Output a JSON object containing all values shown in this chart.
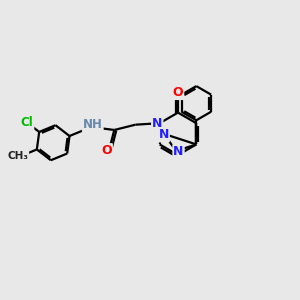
{
  "background_color": "#e8e8e8",
  "atom_colors": {
    "C": "#000000",
    "N": "#2020ff",
    "O": "#ff0000",
    "Cl": "#00bb00",
    "H": "#6688aa"
  },
  "bond_color": "#000000",
  "bond_width": 1.6,
  "figsize": [
    3.0,
    3.0
  ],
  "dpi": 100
}
